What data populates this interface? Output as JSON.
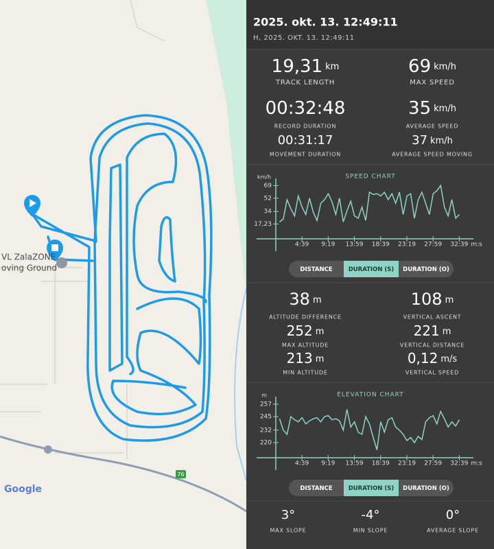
{
  "header": {
    "title": "2025. okt. 13. 12:49:11",
    "subtitle": "H, 2025. OKT. 13. 12:49:11"
  },
  "stats_top": [
    {
      "value": "19,31",
      "unit": "km",
      "label": "TRACK LENGTH"
    },
    {
      "value": "69",
      "unit": "km/h",
      "label": "MAX SPEED"
    },
    {
      "value": "00:32:48",
      "unit": "",
      "label": "RECORD DURATION"
    },
    {
      "value": "35",
      "unit": "km/h",
      "label": "AVERAGE SPEED"
    },
    {
      "value": "00:31:17",
      "unit": "",
      "label": "MOVEMENT DURATION"
    },
    {
      "value": "37",
      "unit": "km/h",
      "label": "AVERAGE SPEED MOVING"
    }
  ],
  "speed_chart": {
    "type": "line",
    "title": "SPEED CHART",
    "y_unit": "km/h",
    "x_unit": "m:s",
    "color": "#8fd3c7",
    "x": [
      40,
      80,
      120,
      160,
      200,
      240,
      280,
      320,
      360,
      400,
      440,
      480,
      520,
      560,
      600,
      640,
      680,
      720,
      760,
      800,
      840,
      880,
      920,
      960,
      1000,
      1040,
      1080,
      1120,
      1160,
      1200,
      1240,
      1280,
      1320,
      1360,
      1400,
      1440,
      1480,
      1520,
      1560,
      1600,
      1640,
      1680,
      1720,
      1760,
      1800,
      1840,
      1880,
      1920,
      1960
    ],
    "values": [
      20,
      24,
      50,
      38,
      28,
      55,
      40,
      30,
      52,
      33,
      22,
      45,
      50,
      58,
      47,
      30,
      52,
      20,
      35,
      48,
      28,
      25,
      40,
      22,
      60,
      57,
      58,
      55,
      60,
      50,
      58,
      45,
      60,
      30,
      55,
      58,
      25,
      50,
      60,
      45,
      30,
      58,
      62,
      69,
      40,
      28,
      50,
      25,
      30
    ],
    "xlim": [
      0,
      2110
    ],
    "ylim": [
      0,
      74
    ],
    "yticks": [
      {
        "value": 17.23,
        "label": "17,23"
      },
      34,
      52,
      69
    ],
    "xticks": [
      {
        "value": 279,
        "label": "4:39"
      },
      {
        "value": 559,
        "label": "9:19"
      },
      {
        "value": 839,
        "label": "13:59"
      },
      {
        "value": 1119,
        "label": "18:39"
      },
      {
        "value": 1399,
        "label": "23:19"
      },
      {
        "value": 1679,
        "label": "27:59"
      },
      {
        "value": 1959,
        "label": "32:39"
      }
    ]
  },
  "tabs": [
    "DISTANCE",
    "DURATION (S)",
    "DURATION (O)"
  ],
  "stats_bottom": [
    {
      "value": "38",
      "unit": "m",
      "label": "ALTITUDE DIFFERENCE"
    },
    {
      "value": "108",
      "unit": "m",
      "label": "VERTICAL ASCENT"
    },
    {
      "value": "252",
      "unit": "m",
      "label": "MAX ALTITUDE"
    },
    {
      "value": "221",
      "unit": "m",
      "label": "VERTICAL DISTANCE"
    },
    {
      "value": "213",
      "unit": "m",
      "label": "MIN ALTITUDE"
    },
    {
      "value": "0,12",
      "unit": "m/s",
      "label": "VERTICAL SPEED"
    }
  ],
  "elevation_chart": {
    "type": "line",
    "title": "ELEVATION CHART",
    "y_unit": "m",
    "x_unit": "m:s",
    "color": "#8fd3c7",
    "x": [
      40,
      80,
      120,
      160,
      200,
      240,
      280,
      320,
      360,
      400,
      440,
      480,
      520,
      560,
      600,
      640,
      680,
      720,
      760,
      800,
      840,
      880,
      920,
      960,
      1000,
      1040,
      1080,
      1120,
      1160,
      1200,
      1240,
      1280,
      1320,
      1360,
      1400,
      1440,
      1480,
      1520,
      1560,
      1600,
      1640,
      1680,
      1720,
      1760,
      1800,
      1840,
      1880,
      1920,
      1960
    ],
    "values": [
      243,
      232,
      228,
      245,
      242,
      240,
      244,
      238,
      241,
      243,
      244,
      240,
      245,
      246,
      242,
      243,
      241,
      232,
      252,
      235,
      240,
      230,
      228,
      245,
      238,
      225,
      213,
      240,
      230,
      242,
      244,
      235,
      232,
      228,
      222,
      225,
      220,
      226,
      223,
      240,
      244,
      246,
      238,
      250,
      243,
      235,
      240,
      236,
      242
    ],
    "xlim": [
      0,
      2110
    ],
    "ylim": [
      206,
      261
    ],
    "yticks": [
      220,
      232,
      245,
      257
    ],
    "xticks": [
      {
        "value": 279,
        "label": "4:39"
      },
      {
        "value": 559,
        "label": "9:19"
      },
      {
        "value": 839,
        "label": "13:59"
      },
      {
        "value": 1119,
        "label": "18:39"
      },
      {
        "value": 1399,
        "label": "23:19"
      },
      {
        "value": 1679,
        "label": "27:59"
      },
      {
        "value": 1959,
        "label": "32:39"
      }
    ]
  },
  "slopes": [
    {
      "value": "3°",
      "label": "MAX SLOPE"
    },
    {
      "value": "-4°",
      "label": "MIN SLOPE"
    },
    {
      "value": "0°",
      "label": "AVERAGE SLOPE"
    }
  ],
  "map": {
    "place_label_1": "VL ZalaZONE",
    "place_label_2": "oving Ground",
    "road_label": "76",
    "attribution": "Google"
  }
}
